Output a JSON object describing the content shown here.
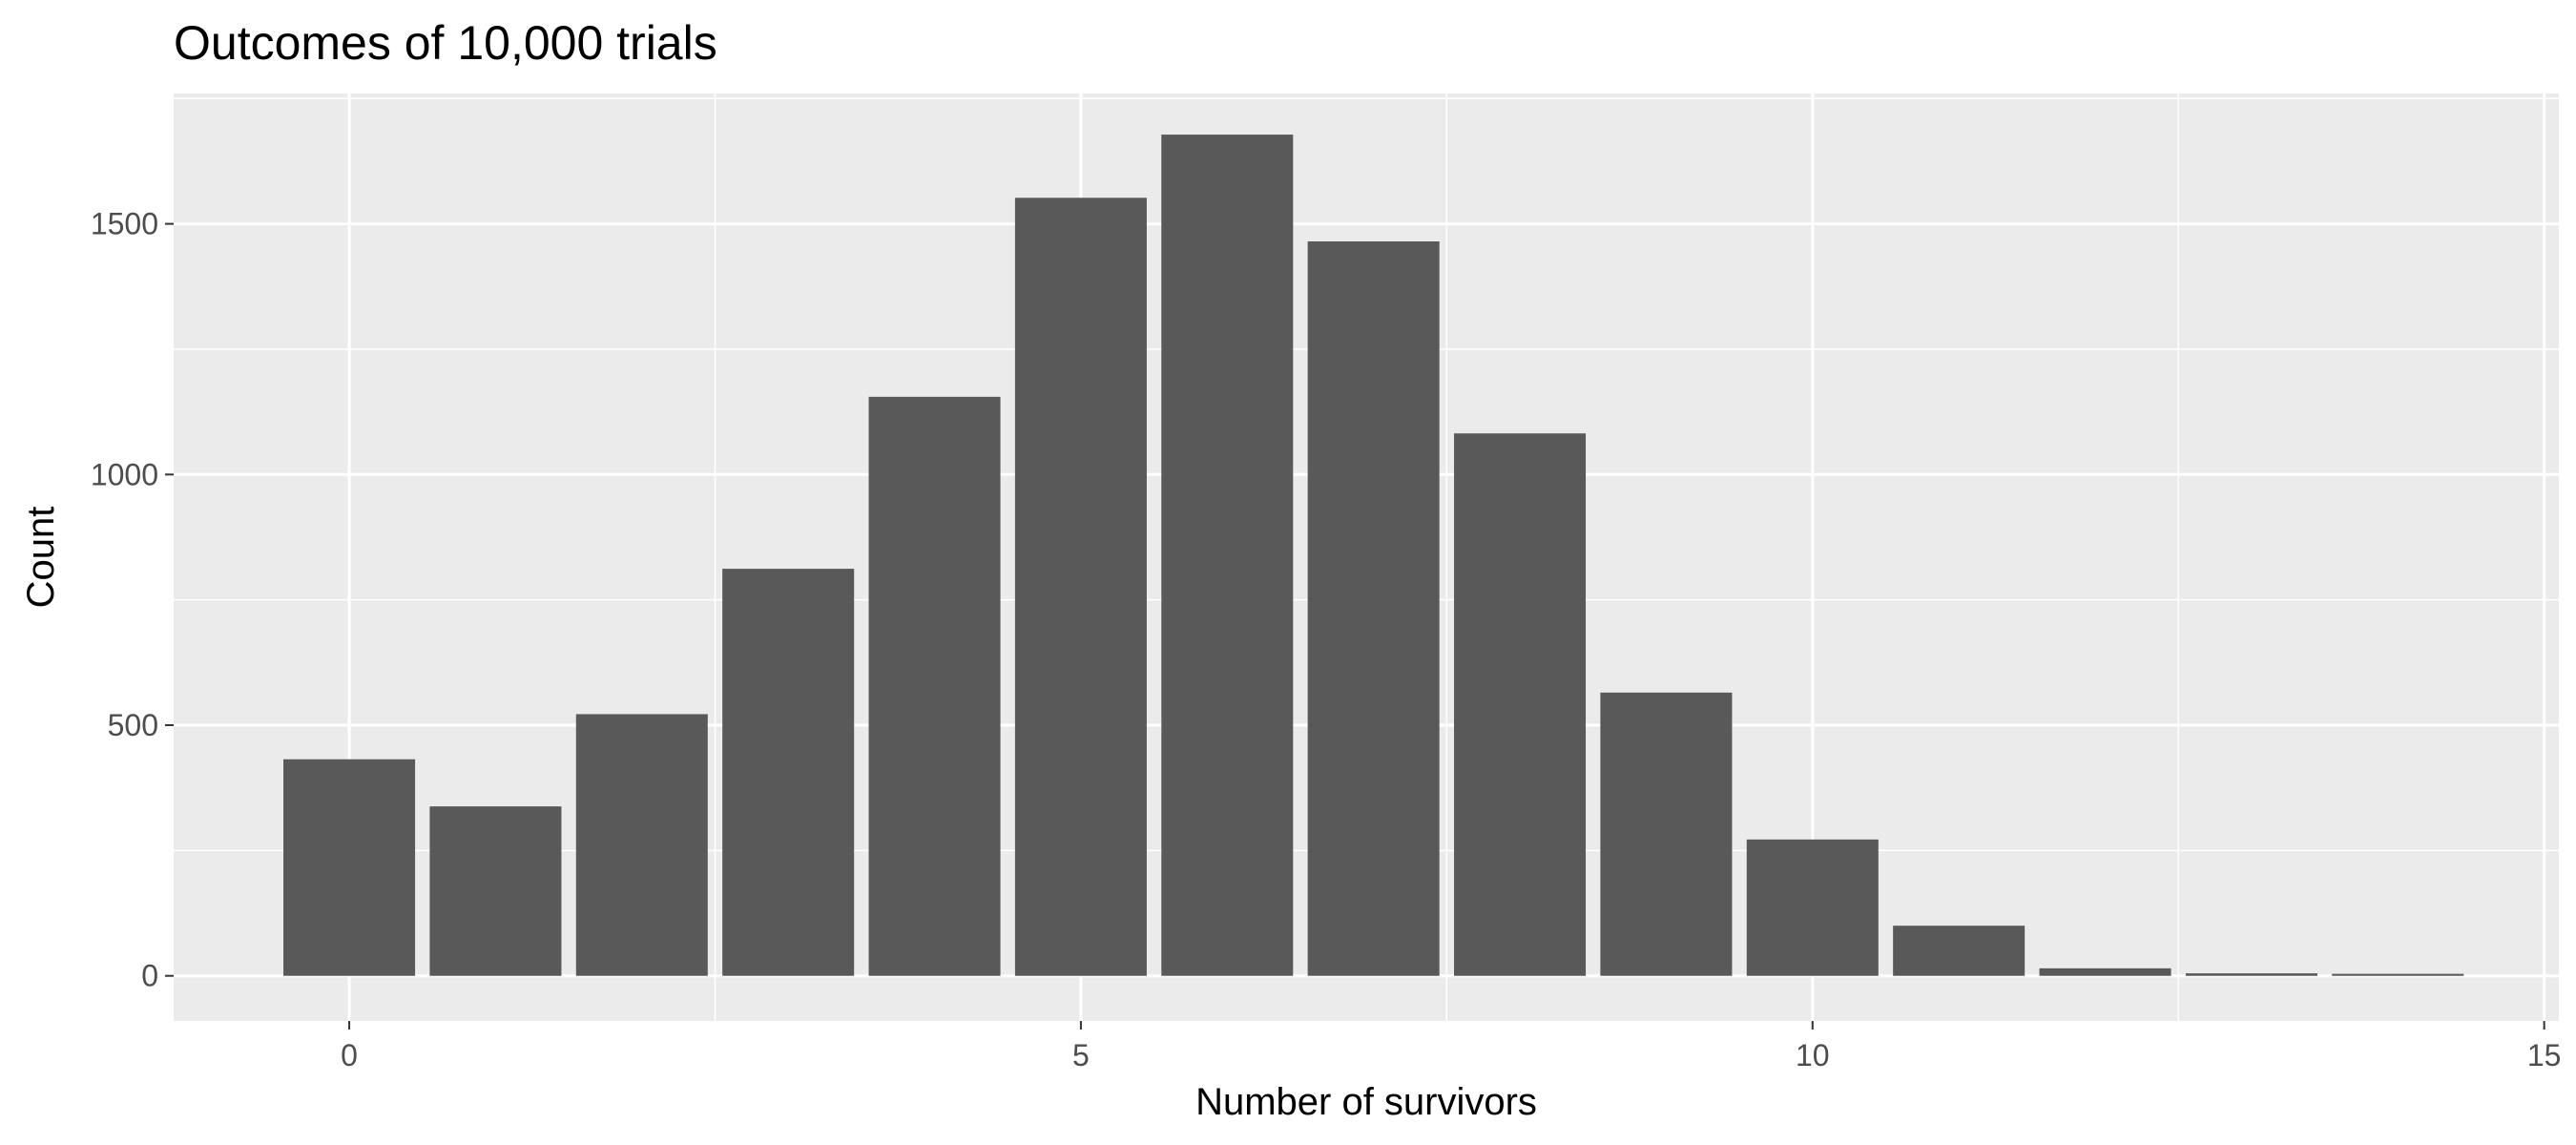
{
  "chart_data": {
    "type": "bar",
    "title": "Outcomes of 10,000 trials",
    "xlabel": "Number of survivors",
    "ylabel": "Count",
    "x": [
      0,
      1,
      2,
      3,
      4,
      5,
      6,
      7,
      8,
      9,
      10,
      11,
      12,
      13,
      14
    ],
    "values": [
      432,
      338,
      522,
      812,
      1155,
      1552,
      1678,
      1465,
      1082,
      565,
      272,
      100,
      15,
      5,
      4
    ],
    "xlim": [
      -1.2,
      15.1
    ],
    "ylim": [
      -90,
      1760
    ],
    "x_ticks": [
      0,
      5,
      10,
      15
    ],
    "x_tick_labels": [
      "0",
      "5",
      "10",
      "15"
    ],
    "y_ticks": [
      0,
      500,
      1000,
      1500
    ],
    "y_tick_labels": [
      "0",
      "500",
      "1000",
      "1500"
    ],
    "grid": true,
    "colors": {
      "bar": "#595959",
      "panel": "#ebebeb",
      "grid": "#ffffff"
    }
  }
}
